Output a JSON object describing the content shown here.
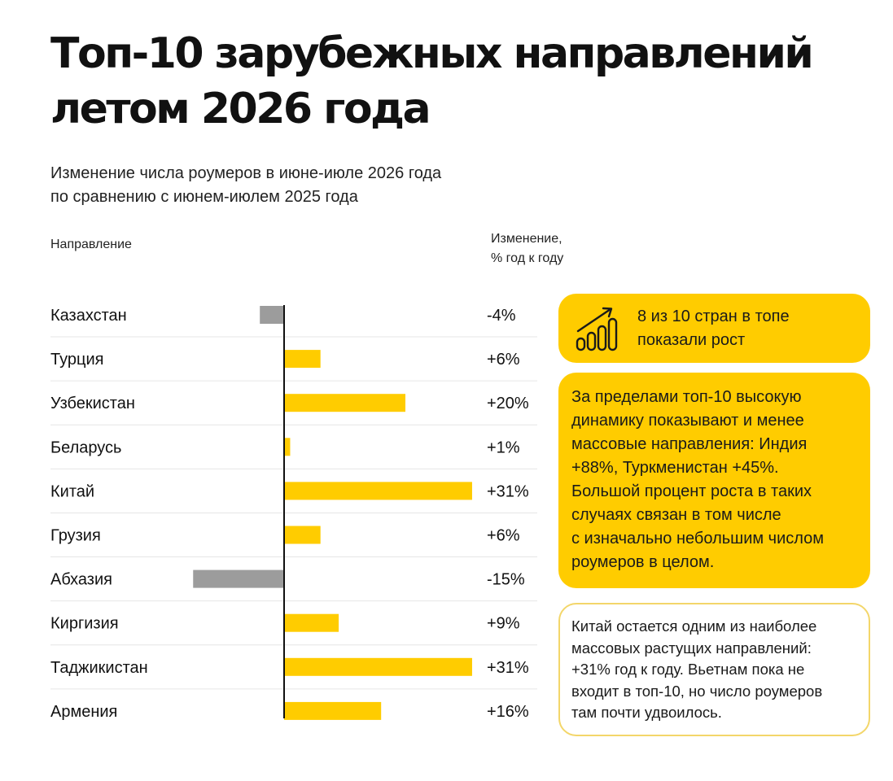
{
  "title_lines": [
    "Топ-10 зарубежных направлений",
    "летом 2026 года"
  ],
  "subtitle_lines": [
    "Изменение числа роумеров в июне-июле 2026 года",
    "по сравнению с июнем-июлем 2025 года"
  ],
  "column_headers": {
    "direction": "Направление",
    "change_lines": [
      "Изменение,",
      "% год к году"
    ]
  },
  "colors": {
    "positive": "#ffcc00",
    "negative": "#9c9c9c",
    "axis": "#111111",
    "grid": "#e6e6e6",
    "card_border": "#f3d66a"
  },
  "chart_data": {
    "type": "bar",
    "orientation": "horizontal",
    "categories": [
      "Казахстан",
      "Турция",
      "Узбекистан",
      "Беларусь",
      "Китай",
      "Грузия",
      "Абхазия",
      "Киргизия",
      "Таджикистан",
      "Армения"
    ],
    "values": [
      -4,
      6,
      20,
      1,
      31,
      6,
      -15,
      9,
      31,
      16
    ],
    "value_labels": [
      "-4%",
      "+6%",
      "+20%",
      "+1%",
      "+31%",
      "+6%",
      "-15%",
      "+9%",
      "+31%",
      "+16%"
    ],
    "xlim": [
      -15,
      31
    ],
    "unit": "%"
  },
  "cards": {
    "growth": {
      "icon": "growth-bars-icon",
      "lines": [
        "8 из 10 стран в топе",
        "показали рост"
      ]
    },
    "beyond_top": {
      "lines": [
        "За пределами топ-10 высокую",
        "динамику показывают и менее",
        "массовые направления: Индия",
        "+88%, Туркменистан +45%.",
        "Большой процент роста в таких",
        "случаях связан в том числе",
        "с изначально небольшим числом",
        "роумеров в целом."
      ]
    },
    "china_note": {
      "lines": [
        "Китай остается одним из наиболее",
        "массовых растущих направлений:",
        "+31% год к году. Вьетнам пока не",
        "входит в топ-10, но число роумеров",
        "там почти удвоилось."
      ]
    }
  }
}
